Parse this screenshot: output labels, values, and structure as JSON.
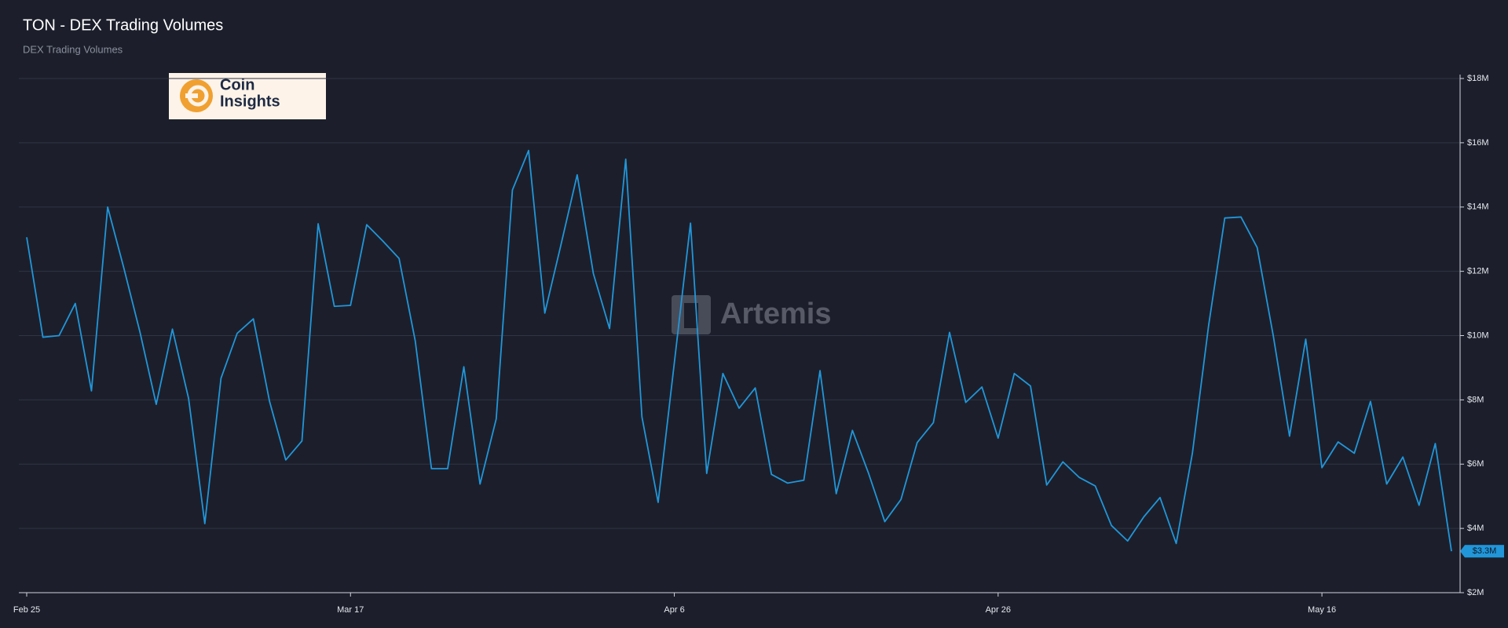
{
  "chart_data": {
    "type": "line",
    "title": "TON - DEX Trading Volumes",
    "subtitle": "DEX Trading Volumes",
    "watermark": "Artemis",
    "logo": [
      "Coin",
      "Insights"
    ],
    "x": [
      "Feb 25",
      "Feb 26",
      "Feb 27",
      "Feb 28",
      "Mar 1",
      "Mar 2",
      "Mar 3",
      "Mar 4",
      "Mar 5",
      "Mar 6",
      "Mar 7",
      "Mar 8",
      "Mar 9",
      "Mar 10",
      "Mar 11",
      "Mar 12",
      "Mar 13",
      "Mar 14",
      "Mar 15",
      "Mar 16",
      "Mar 17",
      "Mar 18",
      "Mar 19",
      "Mar 20",
      "Mar 21",
      "Mar 22",
      "Mar 23",
      "Mar 24",
      "Mar 25",
      "Mar 26",
      "Mar 27",
      "Mar 28",
      "Mar 29",
      "Mar 30",
      "Mar 31",
      "Apr 1",
      "Apr 2",
      "Apr 3",
      "Apr 4",
      "Apr 5",
      "Apr 6",
      "Apr 7",
      "Apr 8",
      "Apr 9",
      "Apr 10",
      "Apr 11",
      "Apr 12",
      "Apr 13",
      "Apr 14",
      "Apr 15",
      "Apr 16",
      "Apr 17",
      "Apr 18",
      "Apr 19",
      "Apr 20",
      "Apr 21",
      "Apr 22",
      "Apr 23",
      "Apr 24",
      "Apr 25",
      "Apr 26",
      "Apr 27",
      "Apr 28",
      "Apr 29",
      "Apr 30",
      "May 1",
      "May 2",
      "May 3",
      "May 4",
      "May 5",
      "May 6",
      "May 7",
      "May 8",
      "May 9",
      "May 10",
      "May 11",
      "May 12",
      "May 13",
      "May 14",
      "May 15",
      "May 16",
      "May 17",
      "May 18",
      "May 19",
      "May 20",
      "May 21",
      "May 22",
      "May 23",
      "May 24"
    ],
    "series": [
      {
        "name": "DEX Trading Volumes",
        "color": "#2196d9",
        "values": [
          13.06,
          9.95,
          10.0,
          11.0,
          8.28,
          14.0,
          12.1,
          10.1,
          7.86,
          10.2,
          8.04,
          4.15,
          8.67,
          10.07,
          10.52,
          7.95,
          6.13,
          6.72,
          13.48,
          10.91,
          10.94,
          13.45,
          12.94,
          12.4,
          9.83,
          5.86,
          5.86,
          9.03,
          5.38,
          7.41,
          14.53,
          15.76,
          10.7,
          12.83,
          15.0,
          11.93,
          10.22,
          15.49,
          7.47,
          4.81,
          9.15,
          13.5,
          5.71,
          8.82,
          7.74,
          8.37,
          5.68,
          5.41,
          5.5,
          8.91,
          5.08,
          7.05,
          5.71,
          4.21,
          4.9,
          6.67,
          7.29,
          10.1,
          7.92,
          8.4,
          6.81,
          8.82,
          8.43,
          5.35,
          6.07,
          5.59,
          5.32,
          4.09,
          3.61,
          4.36,
          4.96,
          3.53,
          6.34,
          10.31,
          13.66,
          13.69,
          12.74,
          9.98,
          6.87,
          9.89,
          5.89,
          6.69,
          6.34,
          7.95,
          5.38,
          6.22,
          4.72,
          6.64,
          3.29
        ],
        "end_label": "$3.3M"
      }
    ],
    "xticks": [
      "Feb 25",
      "Mar 17",
      "Apr 6",
      "Apr 26",
      "May 16"
    ],
    "ylim": [
      2,
      18
    ],
    "yticks": [
      {
        "value": 2,
        "label": "$2M"
      },
      {
        "value": 4,
        "label": "$4M"
      },
      {
        "value": 6,
        "label": "$6M"
      },
      {
        "value": 8,
        "label": "$8M"
      },
      {
        "value": 10,
        "label": "$10M"
      },
      {
        "value": 12,
        "label": "$12M"
      },
      {
        "value": 14,
        "label": "$14M"
      },
      {
        "value": 16,
        "label": "$16M"
      },
      {
        "value": 18,
        "label": "$18M"
      }
    ],
    "grid": true
  }
}
